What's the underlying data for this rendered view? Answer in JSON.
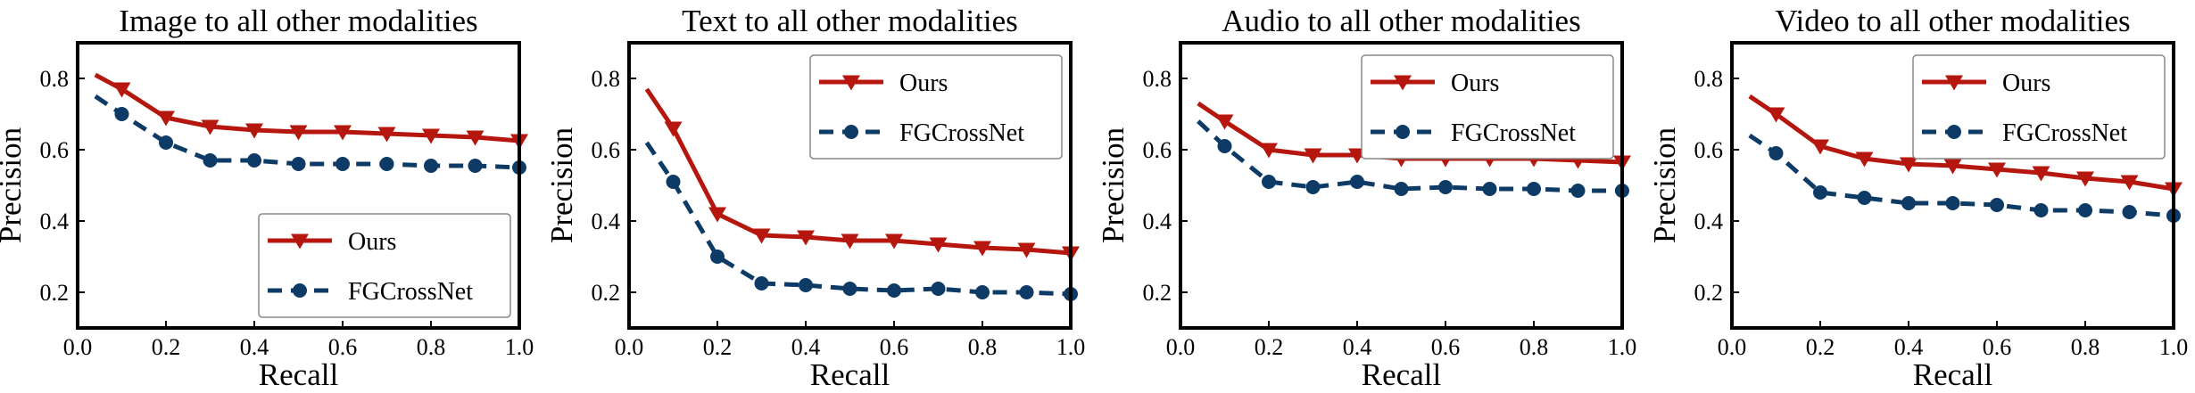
{
  "colors": {
    "ours": "#b5170e",
    "fgcrossnet": "#0d3b66",
    "axis": "#000000"
  },
  "chart_data": [
    {
      "type": "line",
      "title": "Image to all other modalities",
      "xlabel": "Recall",
      "ylabel": "Precision",
      "xlim": [
        0.0,
        1.0
      ],
      "ylim": [
        0.1,
        0.9
      ],
      "xticks": [
        0.0,
        0.2,
        0.4,
        0.6,
        0.8,
        1.0
      ],
      "xtick_labels": [
        "0.0",
        "0.2",
        "0.4",
        "0.6",
        "0.8",
        "1.0"
      ],
      "yticks": [
        0.2,
        0.4,
        0.6,
        0.8
      ],
      "ytick_labels": [
        "0.2",
        "0.4",
        "0.6",
        "0.8"
      ],
      "grid": false,
      "legend": "bottom-right",
      "series": [
        {
          "name": "Ours",
          "marker": "triangle-down",
          "style": "solid",
          "color": "#b5170e",
          "x": [
            0.04,
            0.1,
            0.2,
            0.3,
            0.4,
            0.5,
            0.6,
            0.7,
            0.8,
            0.9,
            1.0
          ],
          "y": [
            0.81,
            0.77,
            0.69,
            0.665,
            0.655,
            0.65,
            0.65,
            0.645,
            0.64,
            0.635,
            0.625
          ]
        },
        {
          "name": "FGCrossNet",
          "marker": "circle",
          "style": "dashed",
          "color": "#0d3b66",
          "x": [
            0.04,
            0.1,
            0.2,
            0.3,
            0.4,
            0.5,
            0.6,
            0.7,
            0.8,
            0.9,
            1.0
          ],
          "y": [
            0.75,
            0.7,
            0.62,
            0.57,
            0.57,
            0.56,
            0.56,
            0.56,
            0.555,
            0.555,
            0.55
          ]
        }
      ]
    },
    {
      "type": "line",
      "title": "Text to all other modalities",
      "xlabel": "Recall",
      "ylabel": "Precision",
      "xlim": [
        0.0,
        1.0
      ],
      "ylim": [
        0.1,
        0.9
      ],
      "xticks": [
        0.0,
        0.2,
        0.4,
        0.6,
        0.8,
        1.0
      ],
      "xtick_labels": [
        "0.0",
        "0.2",
        "0.4",
        "0.6",
        "0.8",
        "1.0"
      ],
      "yticks": [
        0.2,
        0.4,
        0.6,
        0.8
      ],
      "ytick_labels": [
        "0.2",
        "0.4",
        "0.6",
        "0.8"
      ],
      "grid": false,
      "legend": "top-right",
      "series": [
        {
          "name": "Ours",
          "marker": "triangle-down",
          "style": "solid",
          "color": "#b5170e",
          "x": [
            0.04,
            0.1,
            0.2,
            0.3,
            0.4,
            0.5,
            0.6,
            0.7,
            0.8,
            0.9,
            1.0
          ],
          "y": [
            0.77,
            0.66,
            0.42,
            0.36,
            0.355,
            0.345,
            0.345,
            0.335,
            0.325,
            0.32,
            0.31
          ]
        },
        {
          "name": "FGCrossNet",
          "marker": "circle",
          "style": "dashed",
          "color": "#0d3b66",
          "x": [
            0.04,
            0.1,
            0.2,
            0.3,
            0.4,
            0.5,
            0.6,
            0.7,
            0.8,
            0.9,
            1.0
          ],
          "y": [
            0.62,
            0.51,
            0.3,
            0.225,
            0.22,
            0.21,
            0.205,
            0.21,
            0.2,
            0.2,
            0.195
          ]
        }
      ]
    },
    {
      "type": "line",
      "title": "Audio to all other modalities",
      "xlabel": "Recall",
      "ylabel": "Precision",
      "xlim": [
        0.0,
        1.0
      ],
      "ylim": [
        0.1,
        0.9
      ],
      "xticks": [
        0.0,
        0.2,
        0.4,
        0.6,
        0.8,
        1.0
      ],
      "xtick_labels": [
        "0.0",
        "0.2",
        "0.4",
        "0.6",
        "0.8",
        "1.0"
      ],
      "yticks": [
        0.2,
        0.4,
        0.6,
        0.8
      ],
      "ytick_labels": [
        "0.2",
        "0.4",
        "0.6",
        "0.8"
      ],
      "grid": false,
      "legend": "top-right",
      "series": [
        {
          "name": "Ours",
          "marker": "triangle-down",
          "style": "solid",
          "color": "#b5170e",
          "x": [
            0.04,
            0.1,
            0.2,
            0.3,
            0.4,
            0.5,
            0.6,
            0.7,
            0.8,
            0.9,
            1.0
          ],
          "y": [
            0.73,
            0.68,
            0.6,
            0.585,
            0.585,
            0.575,
            0.575,
            0.575,
            0.575,
            0.57,
            0.565
          ]
        },
        {
          "name": "FGCrossNet",
          "marker": "circle",
          "style": "dashed",
          "color": "#0d3b66",
          "x": [
            0.04,
            0.1,
            0.2,
            0.3,
            0.4,
            0.5,
            0.6,
            0.7,
            0.8,
            0.9,
            1.0
          ],
          "y": [
            0.68,
            0.61,
            0.51,
            0.495,
            0.51,
            0.49,
            0.495,
            0.49,
            0.49,
            0.485,
            0.485
          ]
        }
      ]
    },
    {
      "type": "line",
      "title": "Video to all other modalities",
      "xlabel": "Recall",
      "ylabel": "Precision",
      "xlim": [
        0.0,
        1.0
      ],
      "ylim": [
        0.1,
        0.9
      ],
      "xticks": [
        0.0,
        0.2,
        0.4,
        0.6,
        0.8,
        1.0
      ],
      "xtick_labels": [
        "0.0",
        "0.2",
        "0.4",
        "0.6",
        "0.8",
        "1.0"
      ],
      "yticks": [
        0.2,
        0.4,
        0.6,
        0.8
      ],
      "ytick_labels": [
        "0.2",
        "0.4",
        "0.6",
        "0.8"
      ],
      "grid": false,
      "legend": "top-right",
      "series": [
        {
          "name": "Ours",
          "marker": "triangle-down",
          "style": "solid",
          "color": "#b5170e",
          "x": [
            0.04,
            0.1,
            0.2,
            0.3,
            0.4,
            0.5,
            0.6,
            0.7,
            0.8,
            0.9,
            1.0
          ],
          "y": [
            0.75,
            0.7,
            0.61,
            0.575,
            0.56,
            0.555,
            0.545,
            0.535,
            0.52,
            0.51,
            0.49
          ]
        },
        {
          "name": "FGCrossNet",
          "marker": "circle",
          "style": "dashed",
          "color": "#0d3b66",
          "x": [
            0.04,
            0.1,
            0.2,
            0.3,
            0.4,
            0.5,
            0.6,
            0.7,
            0.8,
            0.9,
            1.0
          ],
          "y": [
            0.64,
            0.59,
            0.48,
            0.465,
            0.45,
            0.45,
            0.445,
            0.43,
            0.43,
            0.425,
            0.415
          ]
        }
      ]
    }
  ]
}
